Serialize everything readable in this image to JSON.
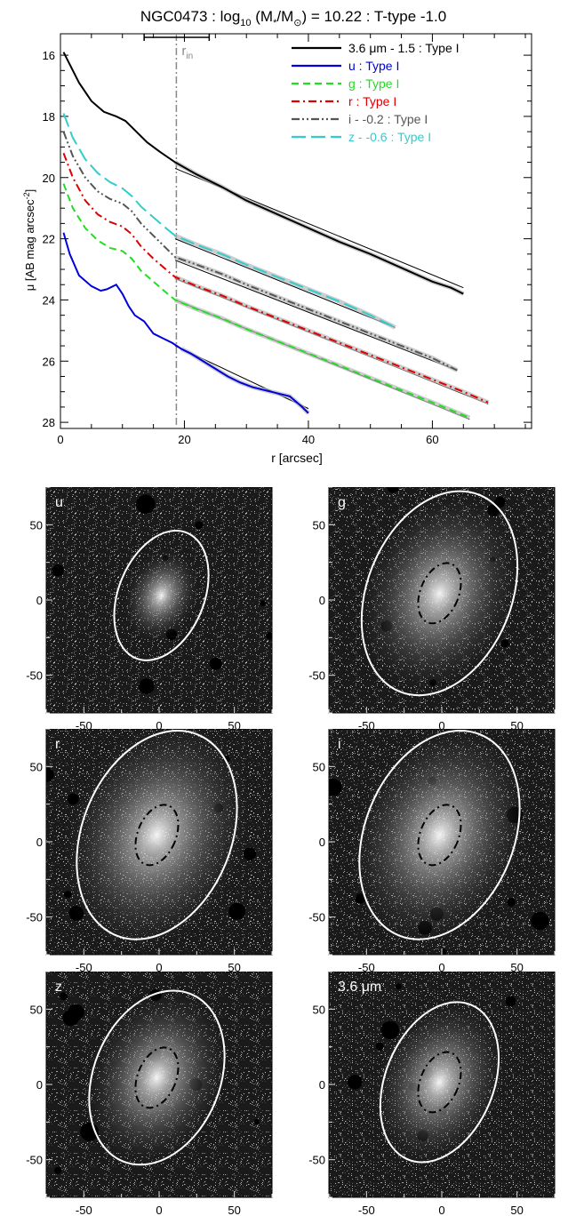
{
  "chart_data": [
    {
      "type": "line",
      "title_parts": {
        "prefix": "NGC0473 : log",
        "sub": "10",
        "mid": " (M",
        "star_sub": "*",
        "slash": "/M",
        "sun_sub": "⊙",
        "suffix": ") = 10.22 : T-type -1.0"
      },
      "xlabel": "r [arcsec]",
      "ylabel_parts": {
        "main": "μ [AB mag arcsec",
        "sup": "-2",
        "close": "]"
      },
      "xlim": [
        0,
        76
      ],
      "ylim": [
        28.2,
        15.3
      ],
      "x_ticks": [
        0,
        20,
        40,
        60
      ],
      "y_ticks": [
        16,
        18,
        20,
        22,
        24,
        26,
        28
      ],
      "r_in": {
        "label": "r",
        "sub": "in",
        "value": 18.7,
        "error_bar": [
          13.5,
          24
        ]
      },
      "legend_position": "top-right",
      "series": [
        {
          "name": "3.6 μm - 1.5 : Type I",
          "color": "#000000",
          "dash": "solid",
          "x": [
            0.5,
            1.5,
            3,
            5,
            7,
            9,
            10.5,
            12,
            14,
            16,
            18.5,
            22,
            26,
            30,
            35,
            40,
            45,
            50,
            55,
            60,
            63,
            65
          ],
          "y": [
            15.9,
            16.3,
            16.9,
            17.5,
            17.85,
            18.0,
            18.15,
            18.45,
            18.85,
            19.15,
            19.5,
            19.9,
            20.3,
            20.75,
            21.2,
            21.65,
            22.1,
            22.5,
            22.95,
            23.4,
            23.6,
            23.8
          ],
          "fit": {
            "x": [
              18.5,
              65
            ],
            "y": [
              19.7,
              23.6
            ]
          }
        },
        {
          "name": "u : Type I",
          "color": "#0000dd",
          "dash": "solid",
          "x": [
            0.5,
            1.5,
            3,
            5,
            6.5,
            7.5,
            9,
            10,
            11,
            12,
            13.5,
            15,
            16.5,
            18,
            19.5,
            21,
            23,
            25,
            27,
            29,
            31,
            33,
            35,
            37,
            39,
            40
          ],
          "y": [
            21.8,
            22.5,
            23.2,
            23.55,
            23.7,
            23.65,
            23.5,
            23.8,
            24.2,
            24.5,
            24.7,
            25.1,
            25.25,
            25.4,
            25.6,
            25.75,
            26.0,
            26.25,
            26.5,
            26.7,
            26.85,
            26.95,
            27.05,
            27.15,
            27.5,
            27.7
          ],
          "fit": {
            "x": [
              18.5,
              40
            ],
            "y": [
              25.5,
              27.55
            ]
          }
        },
        {
          "name": "g : Type I",
          "color": "#22dd22",
          "dash": "dashed",
          "x": [
            0.5,
            2,
            4,
            6,
            8,
            10,
            11.5,
            13,
            15,
            17,
            18.5,
            22,
            26,
            30,
            35,
            40,
            45,
            50,
            55,
            60,
            63,
            66
          ],
          "y": [
            20.2,
            21.0,
            21.65,
            22.05,
            22.3,
            22.4,
            22.65,
            23.05,
            23.4,
            23.75,
            24.0,
            24.3,
            24.6,
            24.95,
            25.35,
            25.75,
            26.15,
            26.55,
            26.95,
            27.35,
            27.6,
            27.85
          ],
          "fit": {
            "x": [
              18.5,
              66
            ],
            "y": [
              24.0,
              27.9
            ]
          }
        },
        {
          "name": "r : Type I",
          "color": "#dd0000",
          "dash": "dashdot",
          "x": [
            0.5,
            2,
            4,
            6,
            8,
            10,
            11.5,
            13,
            15,
            17,
            18.5,
            22,
            26,
            30,
            35,
            40,
            45,
            50,
            55,
            60,
            65,
            69
          ],
          "y": [
            19.2,
            20.0,
            20.75,
            21.2,
            21.45,
            21.6,
            21.85,
            22.25,
            22.65,
            23.0,
            23.25,
            23.55,
            23.85,
            24.2,
            24.6,
            25.0,
            25.4,
            25.8,
            26.2,
            26.6,
            27.0,
            27.35
          ],
          "fit": {
            "x": [
              18.5,
              69
            ],
            "y": [
              23.3,
              27.4
            ]
          }
        },
        {
          "name": "i - -0.2 : Type I",
          "color": "#555555",
          "dash": "dashdotdot",
          "x": [
            0.5,
            2,
            4,
            6,
            8,
            10,
            11.5,
            13,
            15,
            17,
            18.5,
            22,
            26,
            30,
            35,
            40,
            45,
            50,
            55,
            60,
            64
          ],
          "y": [
            18.5,
            19.3,
            20.0,
            20.45,
            20.7,
            20.85,
            21.1,
            21.5,
            21.9,
            22.3,
            22.6,
            22.85,
            23.15,
            23.5,
            23.9,
            24.3,
            24.7,
            25.1,
            25.5,
            25.9,
            26.3
          ],
          "fit": {
            "x": [
              18.5,
              64
            ],
            "y": [
              22.7,
              26.3
            ]
          }
        },
        {
          "name": "z - -0.6 : Type I",
          "color": "#33cccc",
          "dash": "longdash",
          "x": [
            0.5,
            2,
            4,
            6,
            8,
            10,
            11.5,
            13,
            15,
            17,
            18.5,
            22,
            26,
            30,
            35,
            40,
            45,
            50,
            54
          ],
          "y": [
            17.9,
            18.7,
            19.4,
            19.85,
            20.15,
            20.35,
            20.6,
            20.95,
            21.3,
            21.65,
            21.9,
            22.2,
            22.5,
            22.85,
            23.25,
            23.65,
            24.05,
            24.5,
            24.9
          ],
          "fit": {
            "x": [
              18.5,
              54
            ],
            "y": [
              22.0,
              24.9
            ]
          }
        }
      ]
    },
    {
      "type": "image",
      "panels": [
        {
          "label": "u",
          "inner_ellipse": false
        },
        {
          "label": "g",
          "inner_ellipse": true
        },
        {
          "label": "r",
          "inner_ellipse": true
        },
        {
          "label": "i",
          "inner_ellipse": true
        },
        {
          "label": "z",
          "inner_ellipse": true
        },
        {
          "label": "3.6 μm",
          "inner_ellipse": true
        }
      ],
      "x_ticks": [
        -50,
        0,
        50
      ],
      "y_ticks": [
        50,
        0,
        -50
      ],
      "axis_range": [
        -75,
        75
      ],
      "bottom_axis_ticks": {
        "left_column_last_row": [
          -50,
          0,
          50
        ],
        "right_column_last_row": [
          -50,
          0,
          50
        ]
      }
    }
  ]
}
